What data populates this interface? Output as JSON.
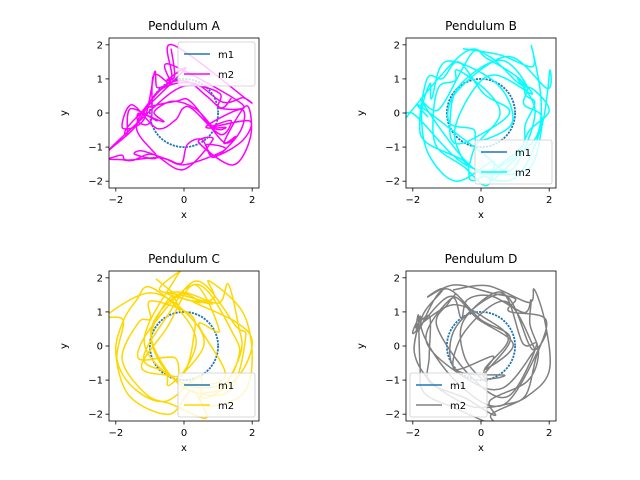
{
  "chart_data": [
    {
      "type": "line",
      "title": "Pendulum A",
      "xlabel": "x",
      "ylabel": "y",
      "xlim": [
        -2.2,
        2.2
      ],
      "ylim": [
        -2.2,
        2.2
      ],
      "xticks": [
        -2,
        0,
        2
      ],
      "yticks": [
        -2,
        -1,
        0,
        1,
        2
      ],
      "grid": false,
      "legend_position": "top-right",
      "series": [
        {
          "name": "m1",
          "color": "#1f77b4",
          "kind": "circle",
          "radius": 1.0,
          "values": [
            [
              1,
              0
            ],
            [
              0.71,
              0.71
            ],
            [
              0,
              1
            ],
            [
              -0.71,
              0.71
            ],
            [
              -1,
              0
            ],
            [
              -0.71,
              -0.71
            ],
            [
              0,
              -1
            ],
            [
              0.71,
              -0.71
            ],
            [
              1,
              0
            ]
          ]
        },
        {
          "name": "m2",
          "color": "#ff00ff",
          "kind": "trajectory",
          "seed": 11,
          "values": [
            [
              -0.25,
              2.0
            ],
            [
              -0.2,
              1.3
            ],
            [
              -0.6,
              0.8
            ],
            [
              -1.4,
              -0.2
            ],
            [
              -1.8,
              -0.5
            ],
            [
              -1.5,
              0.2
            ],
            [
              -0.8,
              -0.3
            ],
            [
              -0.3,
              0.4
            ],
            [
              0.4,
              0.2
            ],
            [
              1.0,
              -0.6
            ],
            [
              1.6,
              -0.5
            ],
            [
              1.9,
              0.0
            ],
            [
              1.8,
              -0.8
            ],
            [
              1.2,
              -1.3
            ],
            [
              0.5,
              -1.0
            ],
            [
              -0.2,
              -1.5
            ],
            [
              -0.8,
              -1.4
            ],
            [
              -1.6,
              -1.6
            ],
            [
              -1.9,
              -1.2
            ],
            [
              -1.5,
              -0.4
            ],
            [
              -0.6,
              0.6
            ],
            [
              0.3,
              1.1
            ],
            [
              1.0,
              0.5
            ],
            [
              1.9,
              0.35
            ]
          ]
        }
      ]
    },
    {
      "type": "line",
      "title": "Pendulum B",
      "xlabel": "x",
      "ylabel": "y",
      "xlim": [
        -2.2,
        2.2
      ],
      "ylim": [
        -2.2,
        2.2
      ],
      "xticks": [
        -2,
        0,
        2
      ],
      "yticks": [
        -2,
        -1,
        0,
        1,
        2
      ],
      "grid": false,
      "legend_position": "bottom-right",
      "series": [
        {
          "name": "m1",
          "color": "#1f77b4",
          "kind": "circle",
          "radius": 1.0,
          "values": [
            [
              1,
              0
            ],
            [
              0.71,
              0.71
            ],
            [
              0,
              1
            ],
            [
              -0.71,
              0.71
            ],
            [
              -1,
              0
            ],
            [
              -0.71,
              -0.71
            ],
            [
              0,
              -1
            ],
            [
              0.71,
              -0.71
            ],
            [
              1,
              0
            ]
          ]
        },
        {
          "name": "m2",
          "color": "#00ffff",
          "kind": "trajectory",
          "seed": 23,
          "values": [
            [
              -0.4,
              1.95
            ],
            [
              0.5,
              1.7
            ],
            [
              1.4,
              1.2
            ],
            [
              1.9,
              0.3
            ],
            [
              1.8,
              -0.6
            ],
            [
              1.3,
              -1.4
            ],
            [
              0.4,
              -1.9
            ],
            [
              -0.6,
              -1.8
            ],
            [
              -1.5,
              -1.2
            ],
            [
              -1.9,
              -0.2
            ],
            [
              -1.6,
              0.9
            ],
            [
              -0.8,
              1.6
            ],
            [
              0.3,
              0.8
            ],
            [
              0.9,
              -0.2
            ],
            [
              0.1,
              -1.0
            ],
            [
              -1.0,
              -0.5
            ],
            [
              -0.5,
              0.6
            ],
            [
              0.8,
              1.6
            ],
            [
              1.7,
              0.9
            ],
            [
              2.0,
              -0.3
            ],
            [
              1.3,
              -1.9
            ],
            [
              -0.2,
              -1.5
            ],
            [
              -1.9,
              0.2
            ]
          ]
        }
      ]
    },
    {
      "type": "line",
      "title": "Pendulum C",
      "xlabel": "x",
      "ylabel": "y",
      "xlim": [
        -2.2,
        2.2
      ],
      "ylim": [
        -2.2,
        2.2
      ],
      "xticks": [
        -2,
        0,
        2
      ],
      "yticks": [
        -2,
        -1,
        0,
        1,
        2
      ],
      "grid": false,
      "legend_position": "bottom-right",
      "series": [
        {
          "name": "m1",
          "color": "#1f77b4",
          "kind": "circle",
          "radius": 1.0,
          "values": [
            [
              1,
              0
            ],
            [
              0.71,
              0.71
            ],
            [
              0,
              1
            ],
            [
              -0.71,
              0.71
            ],
            [
              -1,
              0
            ],
            [
              -0.71,
              -0.71
            ],
            [
              0,
              -1
            ],
            [
              0.71,
              -0.71
            ],
            [
              1,
              0
            ]
          ]
        },
        {
          "name": "m2",
          "color": "#ffd700",
          "kind": "trajectory",
          "seed": 37,
          "values": [
            [
              -0.7,
              1.9
            ],
            [
              0.2,
              1.6
            ],
            [
              1.1,
              1.5
            ],
            [
              1.8,
              0.9
            ],
            [
              2.0,
              -0.1
            ],
            [
              1.6,
              -1.2
            ],
            [
              0.7,
              -1.9
            ],
            [
              -0.4,
              -2.0
            ],
            [
              -1.4,
              -1.4
            ],
            [
              -1.9,
              -0.4
            ],
            [
              -1.7,
              0.7
            ],
            [
              -1.0,
              1.5
            ],
            [
              0.0,
              1.0
            ],
            [
              0.6,
              0.0
            ],
            [
              -0.2,
              -1.0
            ],
            [
              -1.2,
              -0.6
            ],
            [
              -0.8,
              0.9
            ],
            [
              0.5,
              1.85
            ],
            [
              1.5,
              0.5
            ],
            [
              1.2,
              -1.2
            ],
            [
              0.0,
              -1.3
            ],
            [
              -1.3,
              0.2
            ],
            [
              -0.2,
              1.8
            ]
          ]
        }
      ]
    },
    {
      "type": "line",
      "title": "Pendulum D",
      "xlabel": "x",
      "ylabel": "y",
      "xlim": [
        -2.2,
        2.2
      ],
      "ylim": [
        -2.2,
        2.2
      ],
      "xticks": [
        -2,
        0,
        2
      ],
      "yticks": [
        -2,
        -1,
        0,
        1,
        2
      ],
      "grid": false,
      "legend_position": "bottom-left",
      "series": [
        {
          "name": "m1",
          "color": "#1f77b4",
          "kind": "circle",
          "radius": 1.0,
          "values": [
            [
              1,
              0
            ],
            [
              0.71,
              0.71
            ],
            [
              0,
              1
            ],
            [
              -0.71,
              0.71
            ],
            [
              -1,
              0
            ],
            [
              -0.71,
              -0.71
            ],
            [
              0,
              -1
            ],
            [
              0.71,
              -0.71
            ],
            [
              1,
              0
            ]
          ]
        },
        {
          "name": "m2",
          "color": "#808080",
          "kind": "trajectory",
          "seed": 53,
          "values": [
            [
              -0.7,
              1.85
            ],
            [
              0.4,
              1.7
            ],
            [
              1.3,
              1.4
            ],
            [
              1.9,
              0.6
            ],
            [
              1.9,
              -0.5
            ],
            [
              1.4,
              -1.4
            ],
            [
              0.5,
              -1.9
            ],
            [
              -0.6,
              -1.9
            ],
            [
              -1.5,
              -1.3
            ],
            [
              -2.0,
              -0.3
            ],
            [
              -1.7,
              0.8
            ],
            [
              -1.0,
              1.5
            ],
            [
              0.0,
              0.9
            ],
            [
              0.9,
              0.2
            ],
            [
              0.3,
              -0.9
            ],
            [
              -0.8,
              -0.6
            ],
            [
              -0.5,
              0.7
            ],
            [
              0.8,
              1.6
            ],
            [
              1.7,
              0.1
            ],
            [
              0.9,
              -1.6
            ],
            [
              -0.6,
              -1.2
            ],
            [
              -1.8,
              0.4
            ],
            [
              -0.9,
              1.7
            ]
          ]
        }
      ]
    }
  ]
}
